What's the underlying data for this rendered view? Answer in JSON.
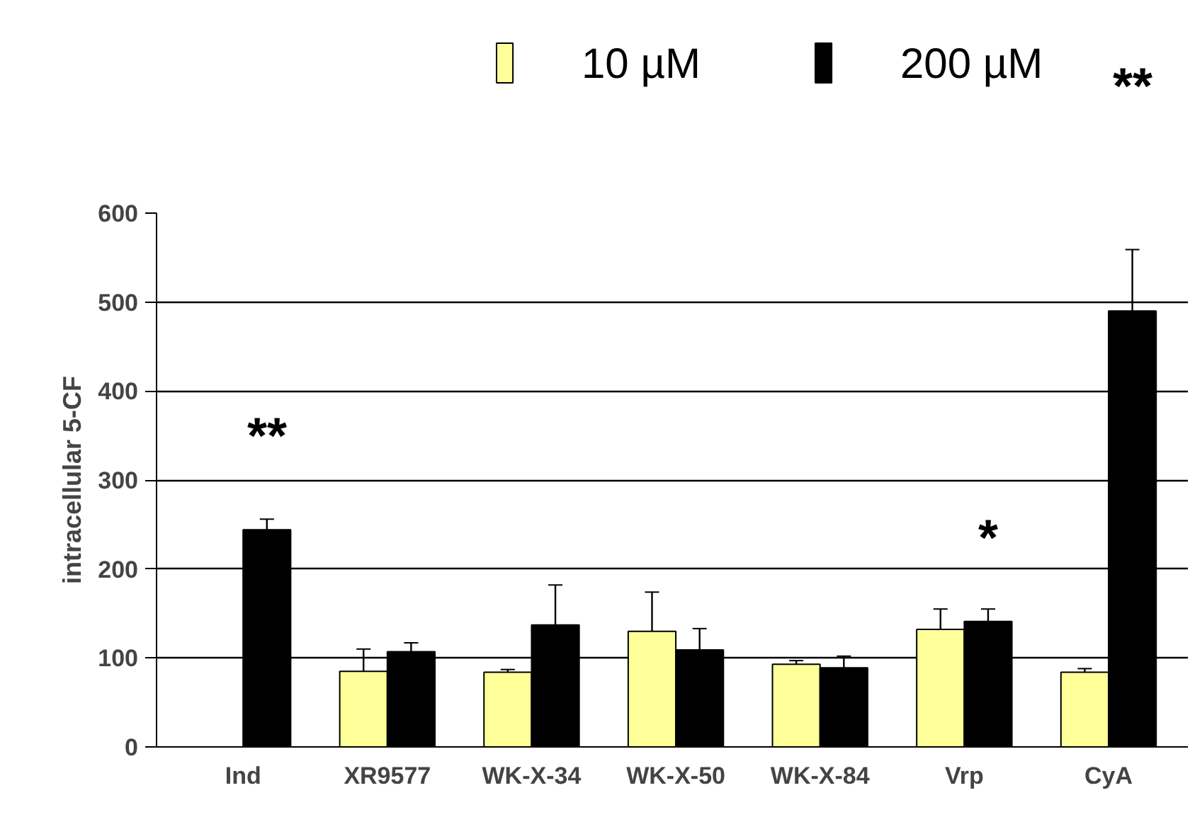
{
  "chart_data": {
    "type": "bar",
    "ylabel": "intracellular 5-CF",
    "categories": [
      "Ind",
      "XR9577",
      "WK-X-34",
      "WK-X-50",
      "WK-X-84",
      "Vrp",
      "CyA"
    ],
    "series": [
      {
        "name": "10 µM",
        "color": "#ffff99",
        "values": [
          null,
          85,
          84,
          130,
          93,
          132,
          84
        ],
        "errors": [
          null,
          [
            85,
            110
          ],
          [
            84,
            87
          ],
          [
            130,
            174
          ],
          [
            93,
            97
          ],
          [
            132,
            155
          ],
          [
            84,
            88
          ]
        ]
      },
      {
        "name": "200 µM",
        "color": "#000000",
        "values": [
          244,
          107,
          137,
          109,
          89,
          141,
          490
        ],
        "errors": [
          [
            244,
            256
          ],
          [
            107,
            117
          ],
          [
            137,
            182
          ],
          [
            109,
            133
          ],
          [
            89,
            102
          ],
          [
            141,
            155
          ],
          [
            490,
            559
          ]
        ]
      }
    ],
    "ylim": [
      0,
      600
    ],
    "yticks": [
      0,
      100,
      200,
      300,
      400,
      500,
      600
    ],
    "grid": "y",
    "legend": "top",
    "annotations": [
      "**",
      "*",
      "**"
    ]
  }
}
